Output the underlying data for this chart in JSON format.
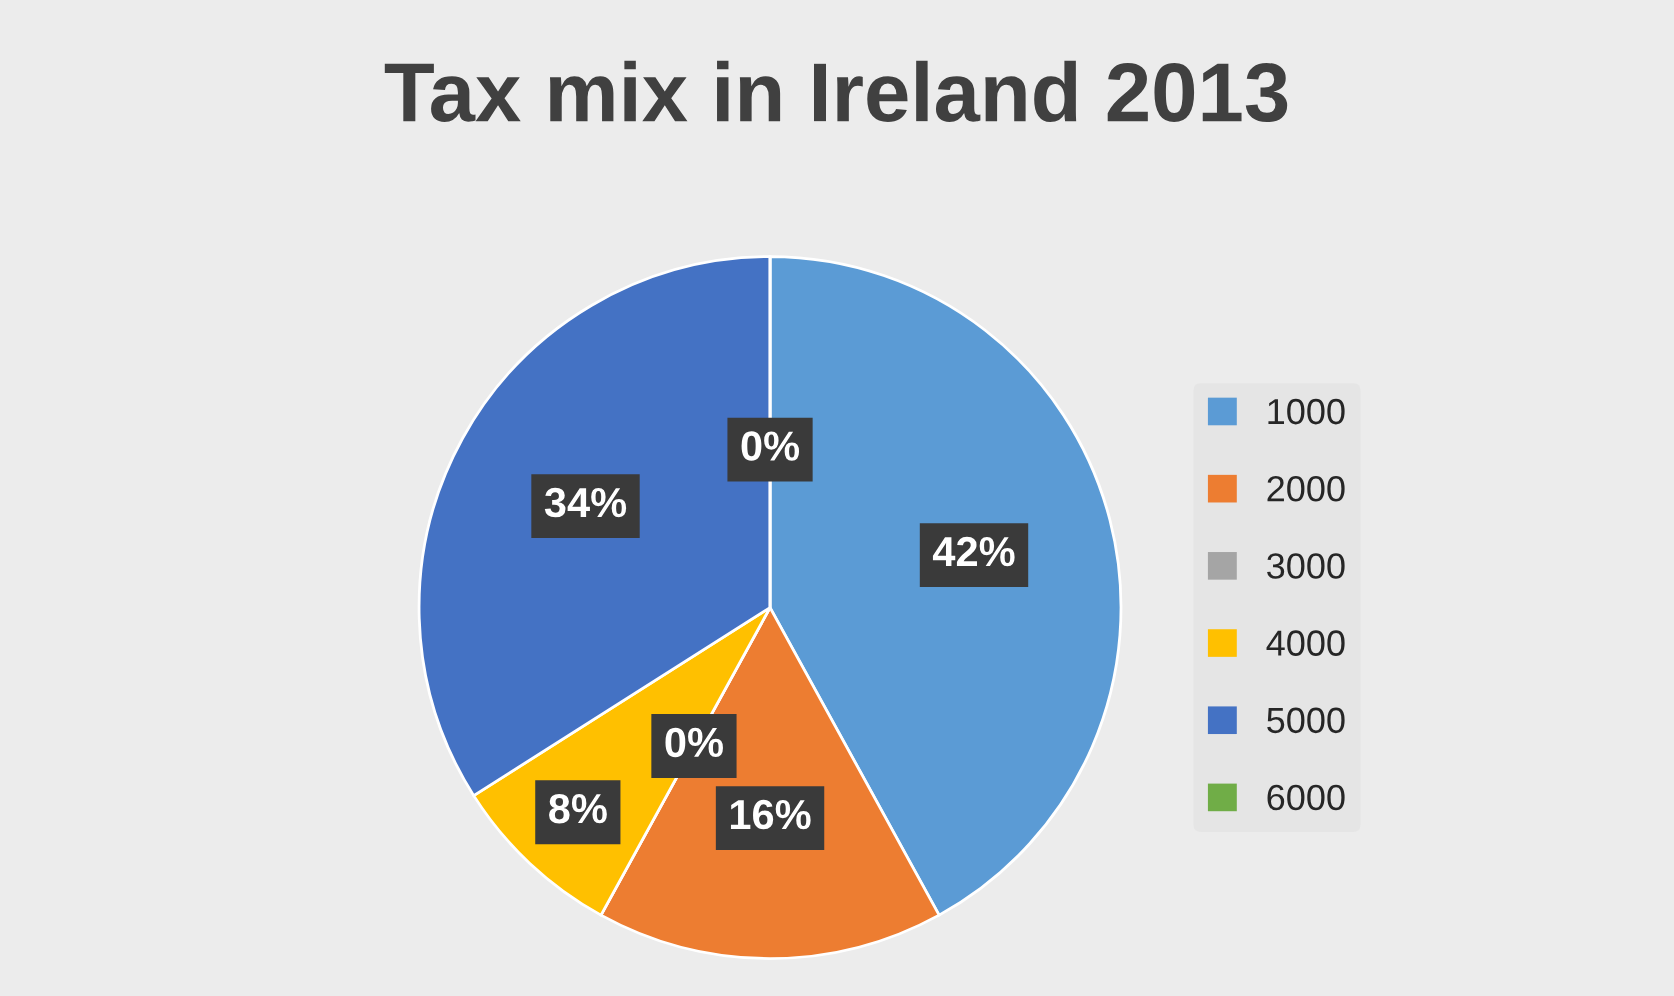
{
  "chart_data": {
    "type": "pie",
    "title": "Tax mix in Ireland 2013",
    "categories": [
      "1000",
      "2000",
      "3000",
      "4000",
      "5000",
      "6000"
    ],
    "values": [
      42,
      16,
      0,
      8,
      34,
      0
    ],
    "colors": [
      "#5b9bd5",
      "#ed7d31",
      "#a5a5a5",
      "#ffc000",
      "#4472c4",
      "#70ad47"
    ],
    "value_labels": [
      "42%",
      "16%",
      "0%",
      "8%",
      "34%",
      "0%"
    ],
    "legend": "right"
  }
}
